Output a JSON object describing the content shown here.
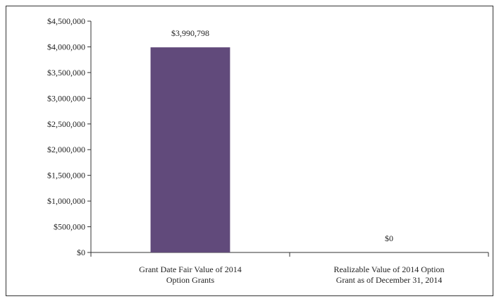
{
  "chart_data": {
    "type": "bar",
    "title": "",
    "xlabel": "",
    "ylabel": "",
    "ylim": [
      0,
      4500000
    ],
    "yticks": [
      0,
      500000,
      1000000,
      1500000,
      2000000,
      2500000,
      3000000,
      3500000,
      4000000,
      4500000
    ],
    "ytick_labels": [
      "$0",
      "$500,000",
      "$1,000,000",
      "$1,500,000",
      "$2,000,000",
      "$2,500,000",
      "$3,000,000",
      "$3,500,000",
      "$4,000,000",
      "$4,500,000"
    ],
    "categories": [
      [
        "Grant Date Fair Value of 2014",
        "Option Grants"
      ],
      [
        "Realizable Value of 2014 Option",
        "Grant as of December 31, 2014"
      ]
    ],
    "values": [
      3990798,
      0
    ],
    "data_labels": [
      "$3,990,798",
      "$0"
    ],
    "grid": false,
    "legend": "none",
    "bar_color": "#614a7b"
  }
}
